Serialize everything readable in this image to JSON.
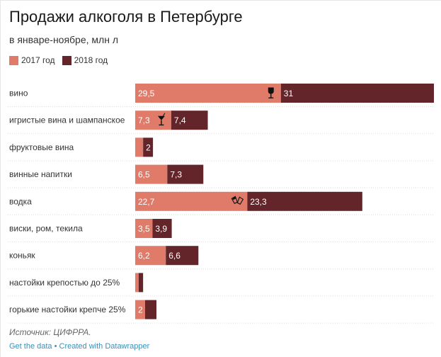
{
  "title": "Продажи алкоголя в Петербурге",
  "subtitle": "в январе-ноябре, млн л",
  "source": "Источник: ЦИФРРА.",
  "footer": {
    "get_data": "Get the data",
    "sep": " • ",
    "created": "Created with Datawrapper"
  },
  "colors": {
    "2017": "#e07b6a",
    "2018": "#64252a"
  },
  "chart_data": {
    "type": "bar",
    "orientation": "horizontal",
    "stacked": true,
    "legend": "top-left",
    "grid": false,
    "categories": [
      "вино",
      "игристые вина и шампанское",
      "фруктовые вина",
      "винные напитки",
      "водка",
      "виски, ром, текила",
      "коньяк",
      "настойки крепостью до 25%",
      "горькие настойки крепче 25%"
    ],
    "series": [
      {
        "name": "2017 год",
        "color": "#e07b6a",
        "values": [
          29.5,
          7.3,
          1.6,
          6.5,
          22.7,
          3.5,
          6.2,
          0.7,
          2
        ],
        "labels": [
          "29,5",
          "7,3",
          "",
          "6,5",
          "22,7",
          "3,5",
          "6,2",
          "",
          "2"
        ]
      },
      {
        "name": "2018 год",
        "color": "#64252a",
        "values": [
          31,
          7.4,
          2,
          7.3,
          23.3,
          3.9,
          6.6,
          0.9,
          2.3
        ],
        "labels": [
          "31",
          "7,4",
          "2",
          "7,3",
          "23,3",
          "3,9",
          "6,6",
          "",
          ""
        ]
      }
    ],
    "icons": [
      "wine-glass-icon",
      "cocktail-icon",
      "",
      "",
      "clinking-glasses-icon",
      "",
      "",
      "",
      ""
    ]
  }
}
